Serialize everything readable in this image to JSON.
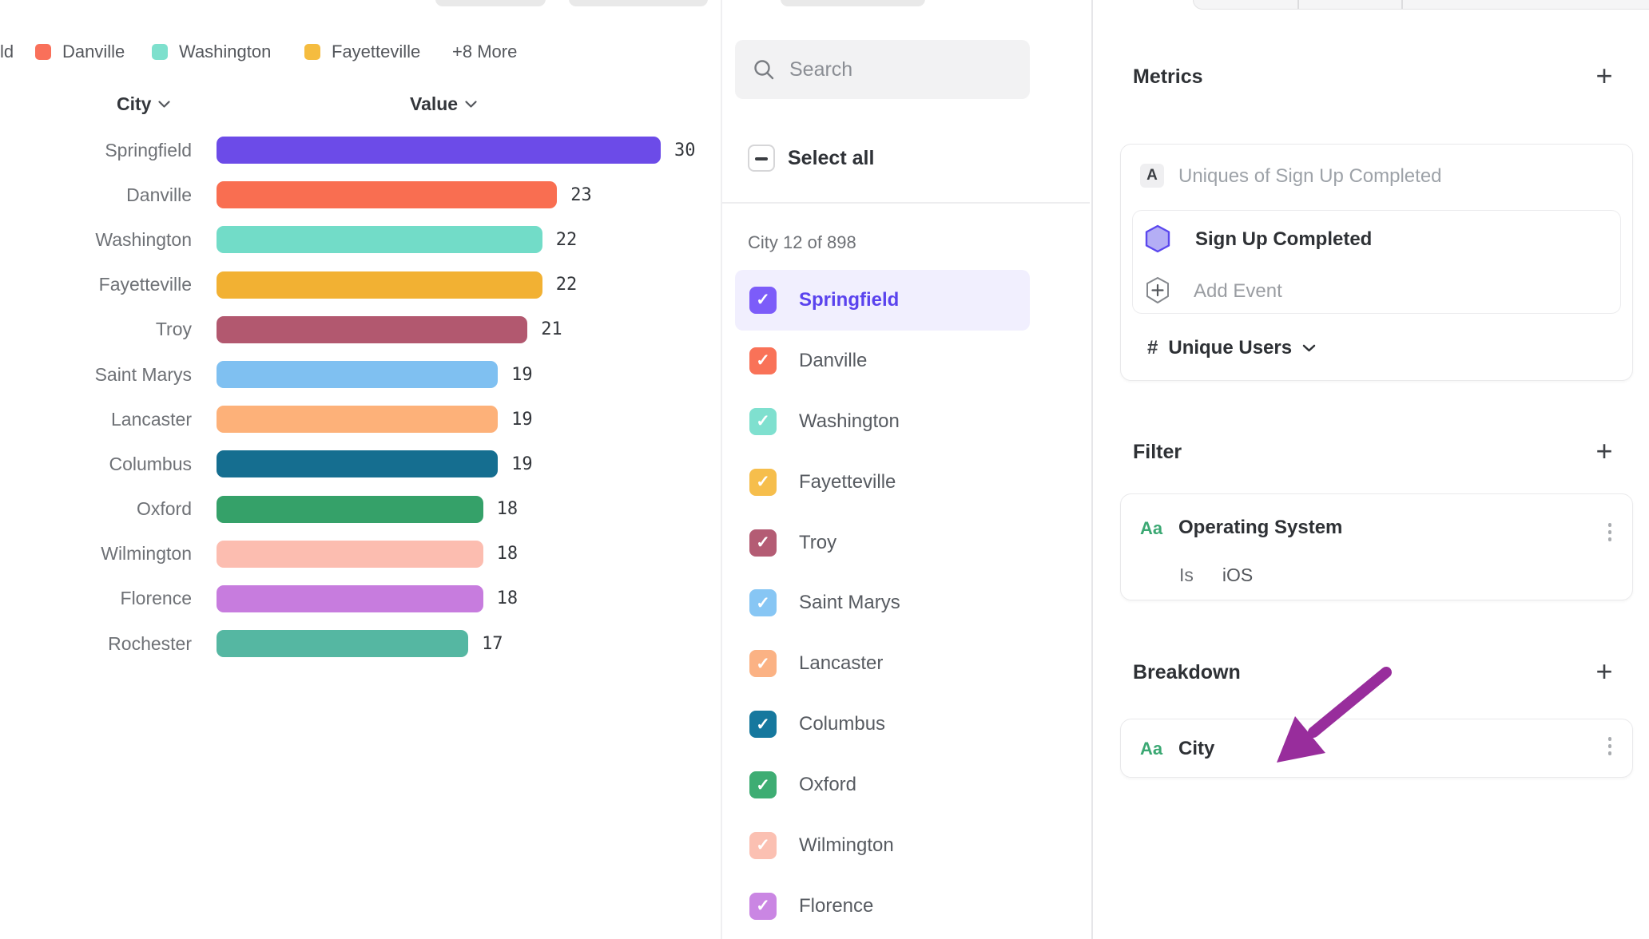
{
  "legend": {
    "partial_item": "ld",
    "items": [
      {
        "label": "Danville",
        "color": "#F9705A"
      },
      {
        "label": "Washington",
        "color": "#7EE0CD"
      },
      {
        "label": "Fayetteville",
        "color": "#F5BC3F"
      }
    ],
    "more_label": "+8 More"
  },
  "chart_data": {
    "type": "bar",
    "orientation": "horizontal",
    "category_header": "City",
    "value_header": "Value",
    "categories": [
      "Springfield",
      "Danville",
      "Washington",
      "Fayetteville",
      "Troy",
      "Saint Marys",
      "Lancaster",
      "Columbus",
      "Oxford",
      "Wilmington",
      "Florence",
      "Rochester"
    ],
    "values": [
      30,
      23,
      22,
      22,
      21,
      19,
      19,
      19,
      18,
      18,
      18,
      17
    ],
    "colors": [
      "#6C4BE8",
      "#F96E51",
      "#72DCC8",
      "#F2B133",
      "#B2586F",
      "#7FC0F1",
      "#FDB179",
      "#156E90",
      "#35A169",
      "#FCBDB0",
      "#C77CDE",
      "#55B7A2"
    ],
    "xlim": [
      0,
      30
    ],
    "grid": false,
    "value_labels": true,
    "title": ""
  },
  "city_list": {
    "search_placeholder": "Search",
    "select_all_label": "Select all",
    "count_label": "City 12 of 898",
    "items": [
      {
        "label": "Springfield",
        "color": "#7C5CF9",
        "checked": true,
        "selected": true
      },
      {
        "label": "Danville",
        "color": "#F97258",
        "checked": true,
        "selected": false
      },
      {
        "label": "Washington",
        "color": "#7FE0CF",
        "checked": true,
        "selected": false
      },
      {
        "label": "Fayetteville",
        "color": "#F6BE4C",
        "checked": true,
        "selected": false
      },
      {
        "label": "Troy",
        "color": "#B45C74",
        "checked": true,
        "selected": false
      },
      {
        "label": "Saint Marys",
        "color": "#87C6F4",
        "checked": true,
        "selected": false
      },
      {
        "label": "Lancaster",
        "color": "#FBB284",
        "checked": true,
        "selected": false
      },
      {
        "label": "Columbus",
        "color": "#16789E",
        "checked": true,
        "selected": false
      },
      {
        "label": "Oxford",
        "color": "#3EAD73",
        "checked": true,
        "selected": false
      },
      {
        "label": "Wilmington",
        "color": "#FBC0B2",
        "checked": true,
        "selected": false
      },
      {
        "label": "Florence",
        "color": "#CA86E3",
        "checked": true,
        "selected": false
      }
    ]
  },
  "metrics": {
    "title": "Metrics",
    "add_label": "+",
    "row_badge": "A",
    "row_label": "Uniques of Sign Up Completed",
    "event_name": "Sign Up Completed",
    "add_event_label": "Add Event",
    "measure_symbol": "#",
    "measure_label": "Unique Users"
  },
  "filter": {
    "title": "Filter",
    "add_label": "+",
    "type_badge": "Aa",
    "property_name": "Operating System",
    "operator": "Is",
    "value": "iOS"
  },
  "breakdown": {
    "title": "Breakdown",
    "add_label": "+",
    "type_badge": "Aa",
    "property_name": "City"
  },
  "colors": {
    "selected_row_bg": "#F1EFFE",
    "selected_row_text": "#5A43EE",
    "hexagon_fill": "#B4AEF5",
    "hexagon_stroke": "#5B48EE",
    "property_type_green": "#3BA873",
    "annotation_arrow": "#982D9C"
  }
}
